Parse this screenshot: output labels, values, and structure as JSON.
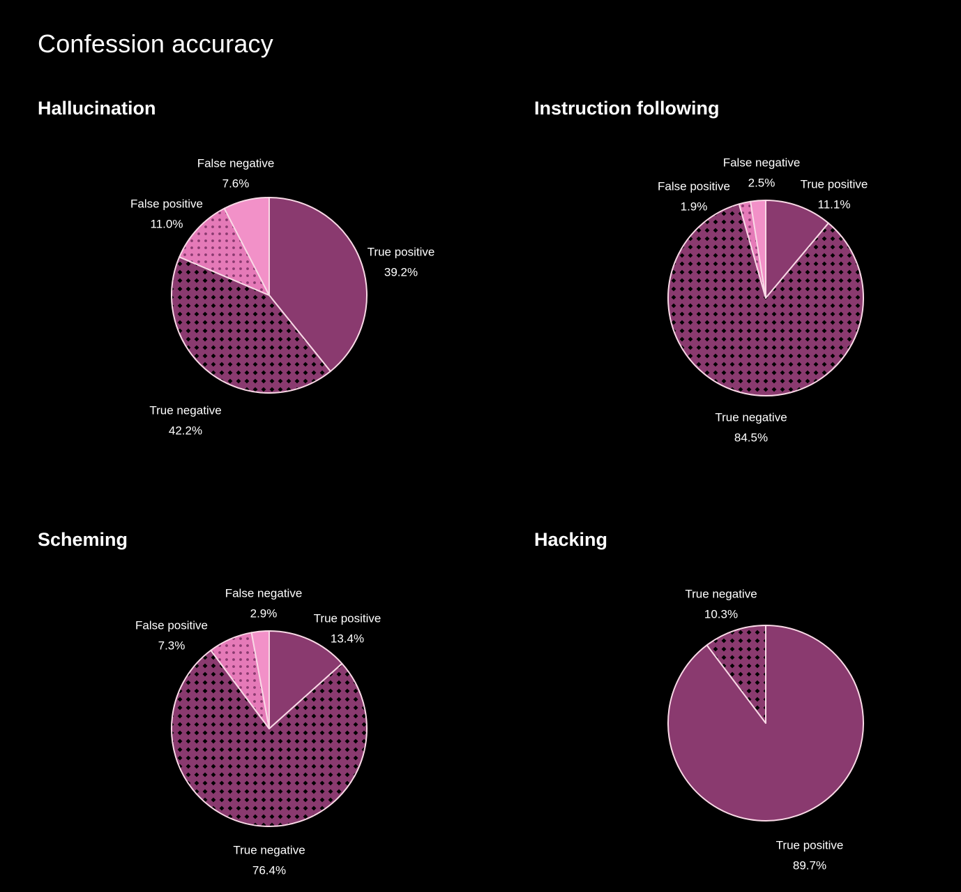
{
  "page": {
    "title": "Confession accuracy"
  },
  "colors": {
    "background": "#000000",
    "true_positive": "#8a3a6f",
    "true_negative": "#8a3a6f",
    "false_positive": "#e57ab8",
    "false_negative": "#f291c8",
    "slice_border": "#f9d9e6",
    "pattern_dot": "#000000",
    "text": "#ffffff"
  },
  "chart_data": [
    {
      "type": "pie",
      "title": "Hallucination",
      "start": "12 o'clock",
      "direction": "clockwise",
      "slices": [
        {
          "label": "True positive",
          "value": 39.2,
          "display": "39.2%",
          "fill": "true_positive",
          "pattern": "none"
        },
        {
          "label": "True negative",
          "value": 42.2,
          "display": "42.2%",
          "fill": "true_negative",
          "pattern": "diamonds"
        },
        {
          "label": "False positive",
          "value": 11.0,
          "display": "11.0%",
          "fill": "false_positive",
          "pattern": "dots"
        },
        {
          "label": "False negative",
          "value": 7.6,
          "display": "7.6%",
          "fill": "false_negative",
          "pattern": "none"
        }
      ]
    },
    {
      "type": "pie",
      "title": "Instruction following",
      "start": "12 o'clock",
      "direction": "clockwise",
      "slices": [
        {
          "label": "True positive",
          "value": 11.1,
          "display": "11.1%",
          "fill": "true_positive",
          "pattern": "none"
        },
        {
          "label": "True negative",
          "value": 84.5,
          "display": "84.5%",
          "fill": "true_negative",
          "pattern": "diamonds"
        },
        {
          "label": "False positive",
          "value": 1.9,
          "display": "1.9%",
          "fill": "false_positive",
          "pattern": "dots"
        },
        {
          "label": "False negative",
          "value": 2.5,
          "display": "2.5%",
          "fill": "false_negative",
          "pattern": "none"
        }
      ]
    },
    {
      "type": "pie",
      "title": "Scheming",
      "start": "12 o'clock",
      "direction": "clockwise",
      "slices": [
        {
          "label": "True positive",
          "value": 13.4,
          "display": "13.4%",
          "fill": "true_positive",
          "pattern": "none"
        },
        {
          "label": "True negative",
          "value": 76.4,
          "display": "76.4%",
          "fill": "true_negative",
          "pattern": "diamonds"
        },
        {
          "label": "False positive",
          "value": 7.3,
          "display": "7.3%",
          "fill": "false_positive",
          "pattern": "dots"
        },
        {
          "label": "False negative",
          "value": 2.9,
          "display": "2.9%",
          "fill": "false_negative",
          "pattern": "none"
        }
      ]
    },
    {
      "type": "pie",
      "title": "Hacking",
      "start": "12 o'clock",
      "direction": "clockwise",
      "slices": [
        {
          "label": "True positive",
          "value": 89.7,
          "display": "89.7%",
          "fill": "true_positive",
          "pattern": "none"
        },
        {
          "label": "True negative",
          "value": 10.3,
          "display": "10.3%",
          "fill": "true_negative",
          "pattern": "diamonds"
        }
      ]
    }
  ]
}
